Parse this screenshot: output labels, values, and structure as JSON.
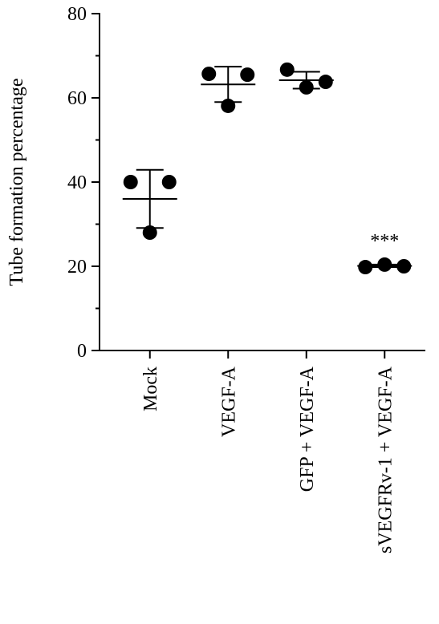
{
  "chart_data": {
    "type": "dot",
    "y_label": "Tube formation percentage",
    "categories": [
      "Mock",
      "VEGF-A",
      "GFP + VEGF-A",
      "sVEGFRv-1 + VEGF-A"
    ],
    "points": [
      [
        40.0,
        28.0,
        40.0
      ],
      [
        65.7,
        58.1,
        65.5
      ],
      [
        66.7,
        62.5,
        63.8
      ],
      [
        19.8,
        20.4,
        20.0
      ]
    ],
    "mean": [
      36.0,
      63.2,
      64.2,
      20.1
    ],
    "sd": [
      6.9,
      4.2,
      2.0,
      0.3
    ],
    "annotations": [
      {
        "category": 3,
        "text": "***"
      }
    ],
    "color": "#000000",
    "ylim": [
      0,
      80
    ],
    "yticks": [
      0,
      20,
      40,
      60,
      80
    ],
    "yminorticks": [
      10,
      30,
      50,
      70
    ]
  }
}
